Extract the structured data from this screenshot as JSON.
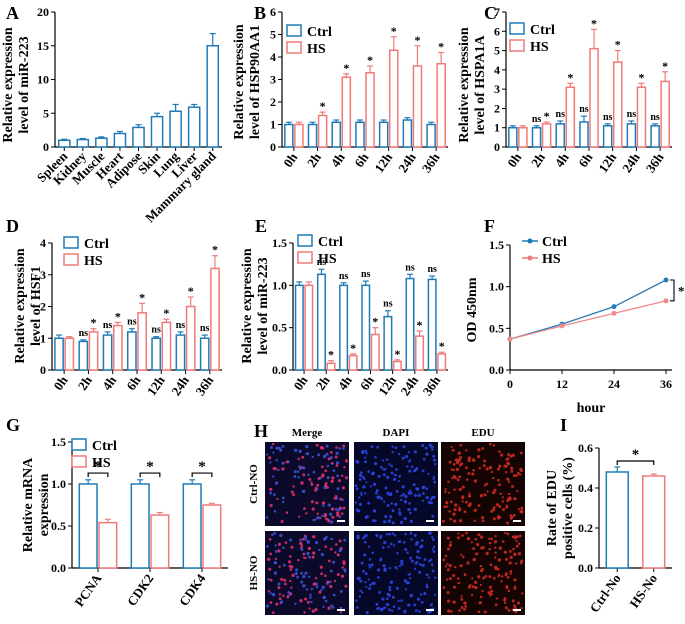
{
  "colors": {
    "ctrl": "#1f7bb5",
    "hs": "#f07a7a",
    "ctrl_line": "#2a7ab8",
    "hs_line": "#f08a8a"
  },
  "chart_data": [
    {
      "id": "A",
      "type": "bar",
      "panel_label": "A",
      "ylabel_lines": [
        "Relative expression",
        "level of  miR-223"
      ],
      "categories": [
        "Spleen",
        "Kidney",
        "Muscle",
        "Heart",
        "Adipose",
        "Skin",
        "Lung",
        "Liver",
        "Mammary gland"
      ],
      "series": [
        {
          "name": "Ctrl",
          "values": [
            1.0,
            1.1,
            1.3,
            2.0,
            2.9,
            4.5,
            5.3,
            5.9,
            15.0
          ],
          "err": [
            0.15,
            0.15,
            0.2,
            0.3,
            0.4,
            0.5,
            1.0,
            0.4,
            1.8
          ]
        }
      ],
      "ylim": [
        0,
        20
      ],
      "yticks": [
        0,
        5,
        10,
        15,
        20
      ]
    },
    {
      "id": "B",
      "type": "bar",
      "panel_label": "B",
      "ylabel_lines": [
        "Relative expression",
        "level of HSP90AA1"
      ],
      "categories": [
        "0h",
        "2h",
        "4h",
        "6h",
        "12h",
        "24h",
        "36h"
      ],
      "legend": [
        "Ctrl",
        "HS"
      ],
      "series": [
        {
          "name": "Ctrl",
          "values": [
            1.0,
            1.0,
            1.1,
            1.1,
            1.1,
            1.2,
            1.0
          ],
          "err": [
            0.1,
            0.1,
            0.1,
            0.1,
            0.1,
            0.1,
            0.1
          ]
        },
        {
          "name": "HS",
          "values": [
            1.0,
            1.4,
            3.1,
            3.3,
            4.3,
            3.6,
            3.7
          ],
          "err": [
            0.1,
            0.15,
            0.15,
            0.3,
            0.6,
            0.9,
            0.5
          ]
        }
      ],
      "significance": [
        "",
        "*",
        "*",
        "*",
        "*",
        "*",
        "*"
      ],
      "ylim": [
        0,
        6
      ],
      "yticks": [
        0,
        1,
        2,
        3,
        4,
        5,
        6
      ]
    },
    {
      "id": "C",
      "type": "bar",
      "panel_label": "C",
      "ylabel_lines": [
        "Relative expression",
        "level of HSPA1A"
      ],
      "categories": [
        "0h",
        "2h",
        "4h",
        "6h",
        "12h",
        "24h",
        "36h"
      ],
      "legend": [
        "Ctrl",
        "HS"
      ],
      "series": [
        {
          "name": "Ctrl",
          "values": [
            1.0,
            1.0,
            1.2,
            1.3,
            1.1,
            1.2,
            1.1
          ],
          "err": [
            0.1,
            0.1,
            0.15,
            0.3,
            0.1,
            0.15,
            0.1
          ]
        },
        {
          "name": "HS",
          "values": [
            1.0,
            1.2,
            3.1,
            5.1,
            4.4,
            3.1,
            3.4
          ],
          "err": [
            0.1,
            0.1,
            0.2,
            1.0,
            0.6,
            0.2,
            0.5
          ]
        }
      ],
      "significance": [
        "",
        "*",
        "*",
        "*",
        "*",
        "*",
        "*"
      ],
      "ns_marks": [
        "",
        "ns",
        "ns",
        "ns",
        "ns",
        "ns",
        "ns"
      ],
      "ylim": [
        0,
        7
      ],
      "yticks": [
        0,
        1,
        2,
        3,
        4,
        5,
        6,
        7
      ]
    },
    {
      "id": "D",
      "type": "bar",
      "panel_label": "D",
      "ylabel_lines": [
        "Relative expression",
        "level of HSF1"
      ],
      "categories": [
        "0h",
        "2h",
        "4h",
        "6h",
        "12h",
        "24h",
        "36h"
      ],
      "legend": [
        "Ctrl",
        "HS"
      ],
      "series": [
        {
          "name": "Ctrl",
          "values": [
            1.0,
            0.9,
            1.1,
            1.2,
            1.0,
            1.1,
            1.0
          ],
          "err": [
            0.1,
            0.05,
            0.1,
            0.1,
            0.05,
            0.1,
            0.1
          ]
        },
        {
          "name": "HS",
          "values": [
            1.0,
            1.2,
            1.4,
            1.8,
            1.5,
            2.0,
            3.2
          ],
          "err": [
            0.05,
            0.1,
            0.1,
            0.3,
            0.1,
            0.3,
            0.4
          ]
        }
      ],
      "significance": [
        "",
        "*",
        "*",
        "*",
        "*",
        "*",
        "*"
      ],
      "ns_marks": [
        "",
        "ns",
        "ns",
        "ns",
        "ns",
        "ns",
        "ns"
      ],
      "ylim": [
        0,
        4
      ],
      "yticks": [
        0,
        1,
        2,
        3,
        4
      ]
    },
    {
      "id": "E",
      "type": "bar",
      "panel_label": "E",
      "ylabel_lines": [
        "Relative expression",
        "level of miR-223"
      ],
      "categories": [
        "0h",
        "2h",
        "4h",
        "6h",
        "12h",
        "24h",
        "36h"
      ],
      "legend": [
        "Ctrl",
        "HS"
      ],
      "series": [
        {
          "name": "Ctrl",
          "values": [
            1.0,
            1.13,
            1.0,
            1.0,
            0.63,
            1.08,
            1.07
          ],
          "err": [
            0.04,
            0.06,
            0.03,
            0.05,
            0.07,
            0.05,
            0.04
          ]
        },
        {
          "name": "HS",
          "values": [
            1.0,
            0.08,
            0.17,
            0.42,
            0.1,
            0.4,
            0.19
          ],
          "err": [
            0.04,
            0.03,
            0.02,
            0.08,
            0.02,
            0.06,
            0.02
          ]
        }
      ],
      "significance": [
        "",
        "*",
        "*",
        "*",
        "*",
        "*",
        "*"
      ],
      "ns_marks": [
        "",
        "ns",
        "ns",
        "ns",
        "ns",
        "ns",
        "ns"
      ],
      "ylim": [
        0,
        1.5
      ],
      "yticks": [
        0,
        0.5,
        1.0,
        1.5
      ]
    },
    {
      "id": "F",
      "type": "line",
      "panel_label": "F",
      "ylabel_lines": [
        "OD 450nm"
      ],
      "xlabel": "hour",
      "legend": [
        "Ctrl",
        "HS"
      ],
      "x": [
        0,
        12,
        24,
        36
      ],
      "series": [
        {
          "name": "Ctrl",
          "values": [
            0.37,
            0.55,
            0.76,
            1.08
          ]
        },
        {
          "name": "HS",
          "values": [
            0.37,
            0.53,
            0.68,
            0.83
          ]
        }
      ],
      "annotation": "*",
      "xlim": [
        0,
        36
      ],
      "xticks": [
        0,
        12,
        24,
        36
      ],
      "ylim": [
        0.0,
        1.5
      ],
      "yticks": [
        0.0,
        0.5,
        1.0,
        1.5
      ]
    },
    {
      "id": "G",
      "type": "bar",
      "panel_label": "G",
      "ylabel_lines": [
        "Relative mRNA",
        "expression"
      ],
      "categories": [
        "PCNA",
        "CDK2",
        "CDK4"
      ],
      "legend": [
        "Ctrl",
        "HS"
      ],
      "series": [
        {
          "name": "Ctrl",
          "values": [
            1.0,
            1.0,
            1.0
          ],
          "err": [
            0.05,
            0.05,
            0.05
          ]
        },
        {
          "name": "HS",
          "values": [
            0.54,
            0.63,
            0.75
          ],
          "err": [
            0.04,
            0.03,
            0.02
          ]
        }
      ],
      "significance": [
        "*",
        "*",
        "*"
      ],
      "ylim": [
        0.0,
        1.5
      ],
      "yticks": [
        0.0,
        0.5,
        1.0,
        1.5
      ]
    },
    {
      "id": "I",
      "type": "bar",
      "panel_label": "I",
      "ylabel_lines": [
        "Rate of EDU",
        "positive cells (%)"
      ],
      "categories": [
        "Ctrl-No",
        "HS-No"
      ],
      "series": [
        {
          "name": "Rate",
          "values": [
            0.48,
            0.46
          ],
          "err": [
            0.025,
            0.01
          ]
        }
      ],
      "significance": [
        "*"
      ],
      "ylim": [
        0.0,
        0.6
      ],
      "yticks": [
        0.0,
        0.2,
        0.4,
        0.6
      ]
    }
  ],
  "panel_h": {
    "label": "H",
    "columns": [
      "Merge",
      "DAPI",
      "EDU"
    ],
    "rows": [
      "Ctrl-NO",
      "HS-NO"
    ]
  }
}
